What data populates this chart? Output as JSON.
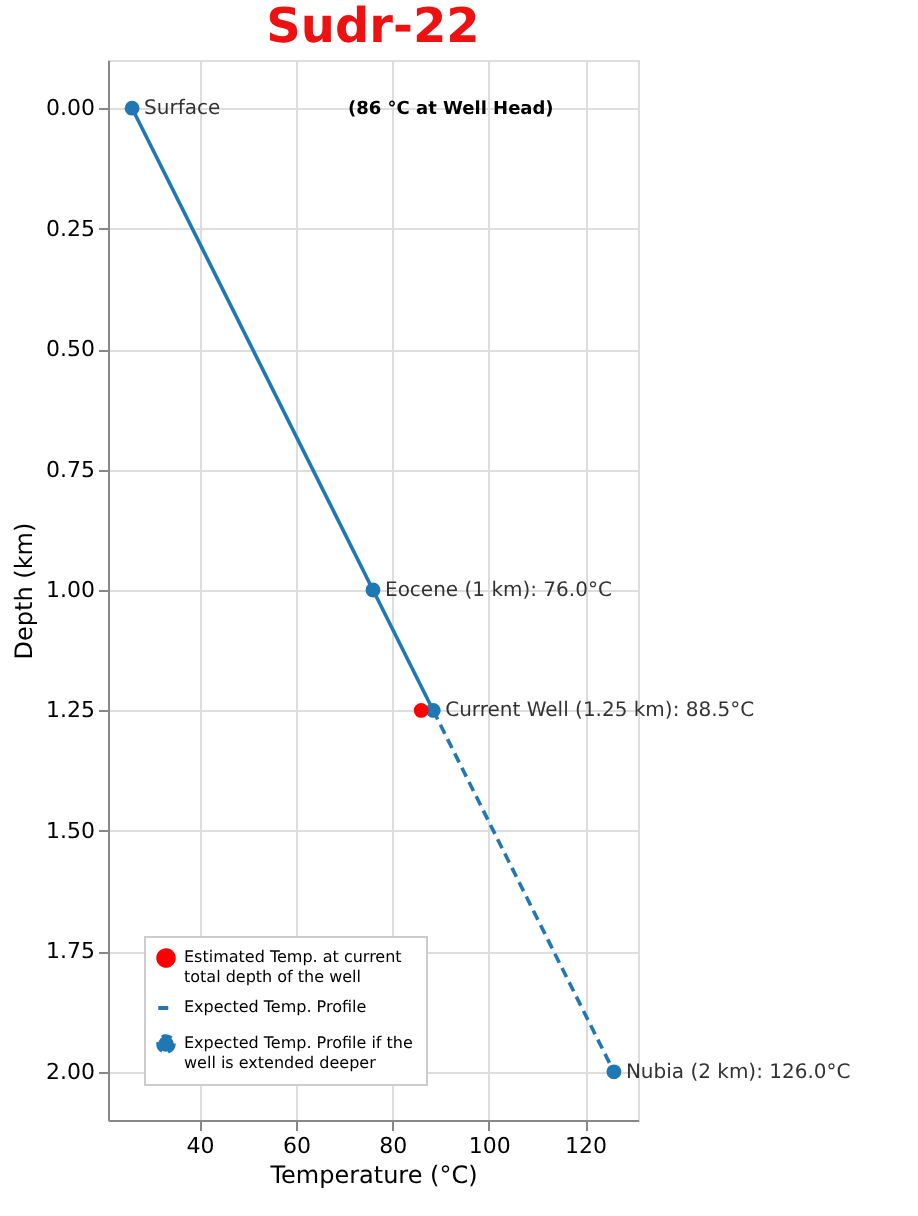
{
  "chart_data": {
    "type": "line",
    "title": "Sudr-22",
    "xlabel": "Temperature (°C)",
    "ylabel": "Depth (km)",
    "xlim": [
      21,
      131
    ],
    "xticks": [
      40,
      60,
      80,
      100,
      120
    ],
    "ylim": [
      2.1,
      -0.1
    ],
    "yticks": [
      {
        "value": 0,
        "label": "0.00"
      },
      {
        "value": 0.25,
        "label": "0.25"
      },
      {
        "value": 0.5,
        "label": "0.50"
      },
      {
        "value": 0.75,
        "label": "0.75"
      },
      {
        "value": 1,
        "label": "1.00"
      },
      {
        "value": 1.25,
        "label": "1.25"
      },
      {
        "value": 1.5,
        "label": "1.50"
      },
      {
        "value": 1.75,
        "label": "1.75"
      },
      {
        "value": 2,
        "label": "2.00"
      }
    ],
    "grid": true,
    "legend": "bottom left",
    "series": [
      {
        "type": "line",
        "color": "#1f77b4",
        "x": [
          26,
          76,
          88.5
        ],
        "values": [
          0,
          1,
          1.25
        ],
        "line_style": "solid",
        "marker": "circle"
      },
      {
        "type": "scatter",
        "name": "Estimated Temp. at current total depth of the well",
        "color": "#ff0000",
        "x": [
          86
        ],
        "values": [
          1.25
        ],
        "marker": "circle"
      },
      {
        "type": "line",
        "name": "Expected Temp. Profile",
        "color": "#1f77b4",
        "x": [
          88.5,
          126
        ],
        "values": [
          1.25,
          2
        ],
        "line_style": "dashed",
        "marker": "none"
      },
      {
        "type": "line",
        "name": "Expected Temp. Profile if the well is extended deeper",
        "color": "#1f77b4",
        "x": [
          126
        ],
        "values": [
          2
        ],
        "line_style": "dashed",
        "marker": "circle"
      }
    ],
    "annotations": [
      {
        "text": "Surface",
        "x": 26,
        "y": 0
      },
      "(86 °C at Well Head)",
      {
        "text": "Eocene (1 km): 76.0°C",
        "x": 76,
        "y": 1
      },
      {
        "text": "Current Well (1.25 km): 88.5°C",
        "x": 88.5,
        "y": 1.25
      },
      {
        "text": "Nubia (2 km): 126.0°C",
        "x": 126,
        "y": 2
      }
    ]
  }
}
